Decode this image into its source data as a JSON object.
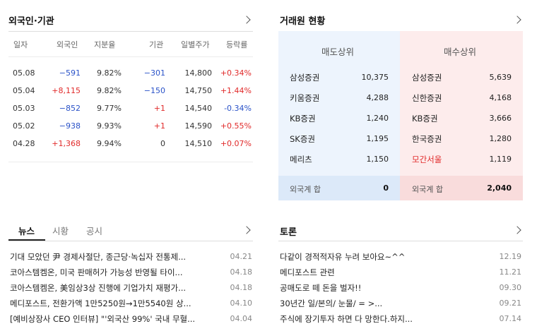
{
  "foreign": {
    "title": "외국인·기관",
    "headers": [
      "일자",
      "외국인",
      "지분율",
      "기관",
      "일별주가",
      "등락률"
    ],
    "rows": [
      {
        "date": "05.08",
        "foreign": "−591",
        "f_color": "blue",
        "ratio": "9.82%",
        "inst": "−301",
        "i_color": "blue",
        "price": "14,800",
        "change": "+0.34%",
        "c_color": "red"
      },
      {
        "date": "05.04",
        "foreign": "+8,115",
        "f_color": "red",
        "ratio": "9.82%",
        "inst": "−150",
        "i_color": "blue",
        "price": "14,750",
        "change": "+1.44%",
        "c_color": "red"
      },
      {
        "date": "05.03",
        "foreign": "−852",
        "f_color": "blue",
        "ratio": "9.77%",
        "inst": "+1",
        "i_color": "red",
        "price": "14,540",
        "change": "-0.34%",
        "c_color": "blue"
      },
      {
        "date": "05.02",
        "foreign": "−938",
        "f_color": "blue",
        "ratio": "9.93%",
        "inst": "+1",
        "i_color": "red",
        "price": "14,590",
        "change": "+0.55%",
        "c_color": "red"
      },
      {
        "date": "04.28",
        "foreign": "+1,368",
        "f_color": "red",
        "ratio": "9.94%",
        "inst": "0",
        "i_color": "dark",
        "price": "14,510",
        "change": "+0.07%",
        "c_color": "red"
      }
    ]
  },
  "brokers": {
    "title": "거래원 현황",
    "sell_header": "매도상위",
    "buy_header": "매수상위",
    "sell": [
      {
        "name": "삼성증권",
        "value": "10,375"
      },
      {
        "name": "키움증권",
        "value": "4,288"
      },
      {
        "name": "KB증권",
        "value": "1,240"
      },
      {
        "name": "SK증권",
        "value": "1,195"
      },
      {
        "name": "메리츠",
        "value": "1,150"
      }
    ],
    "buy": [
      {
        "name": "삼성증권",
        "value": "5,639",
        "highlight": false
      },
      {
        "name": "신한증권",
        "value": "4,168",
        "highlight": false
      },
      {
        "name": "KB증권",
        "value": "3,666",
        "highlight": false
      },
      {
        "name": "한국증권",
        "value": "1,280",
        "highlight": false
      },
      {
        "name": "모간서울",
        "value": "1,119",
        "highlight": true
      }
    ],
    "sell_total_label": "외국계 합",
    "sell_total": "0",
    "buy_total_label": "외국계 합",
    "buy_total": "2,040",
    "highlight_color": "#e12a2a"
  },
  "news": {
    "tabs": [
      "뉴스",
      "시황",
      "공시"
    ],
    "items": [
      {
        "title": "기대 모았던 尹 경제사절단, 종근당·녹십자 전통제...",
        "date": "04.21"
      },
      {
        "title": "코아스템켐온, 미국 판매허가 가능성 반영될 타이...",
        "date": "04.18"
      },
      {
        "title": "코아스템켐온, 美임상3상 진행에 기업가치 재평가...",
        "date": "04.18"
      },
      {
        "title": "메디포스트, 전환가액 1만5250원→1만5540원 상...",
        "date": "04.10"
      },
      {
        "title": "[예비상장사 CEO 인터뷰] \"'외국산 99%' 국내 무혈...",
        "date": "04.04"
      }
    ]
  },
  "discussion": {
    "title": "토론",
    "items": [
      {
        "title": "다같이 경적적자유 누려 보아요~^^",
        "date": "12.19"
      },
      {
        "title": "메디포스트 관련",
        "date": "11.21"
      },
      {
        "title": "공매도로 떼 돈을 벌자!!",
        "date": "09.30"
      },
      {
        "title": "30년간 일/본의/ 눈물/ = >...",
        "date": "09.21"
      },
      {
        "title": "주식에 장기투자 하면 다 망한다.하지...",
        "date": "07.14"
      }
    ]
  }
}
